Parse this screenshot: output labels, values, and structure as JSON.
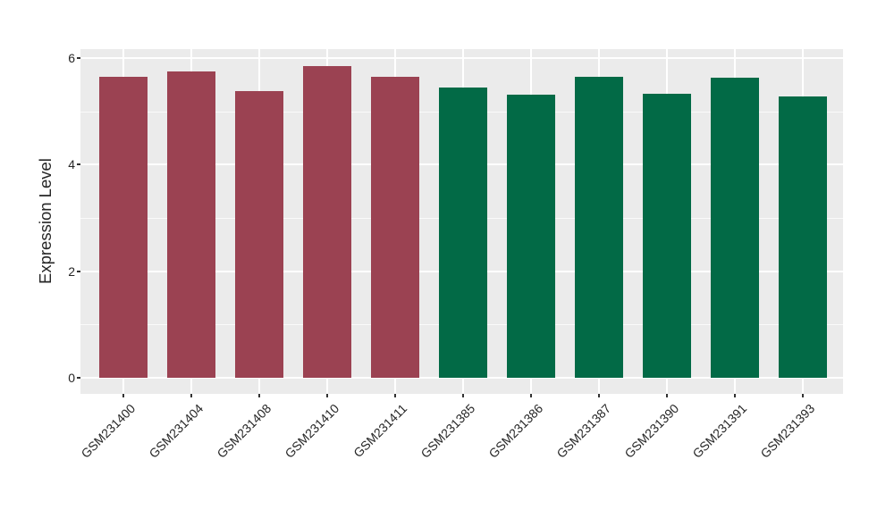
{
  "figure": {
    "background": "#FFFFFF"
  },
  "chart_data": {
    "type": "bar",
    "title": "",
    "xlabel": "",
    "ylabel": "Expression Level",
    "categories": [
      "GSM231400",
      "GSM231404",
      "GSM231408",
      "GSM231410",
      "GSM231411",
      "GSM231385",
      "GSM231386",
      "GSM231387",
      "GSM231390",
      "GSM231391",
      "GSM231393"
    ],
    "values": [
      5.65,
      5.75,
      5.38,
      5.85,
      5.65,
      5.45,
      5.31,
      5.65,
      5.33,
      5.63,
      5.27
    ],
    "groups": [
      "group1",
      "group1",
      "group1",
      "group1",
      "group1",
      "group2",
      "group2",
      "group2",
      "group2",
      "group2",
      "group2"
    ],
    "group_colors": {
      "group1": "#9B4252",
      "group2": "#026A46"
    },
    "ylim": [
      -0.3,
      6.17
    ],
    "yticks": [
      0,
      2,
      4,
      6
    ],
    "yticks_minor": [
      1,
      3,
      5
    ],
    "grid": true,
    "legend": "none",
    "panel_bg": "#EBEBEB",
    "grid_color": "#FFFFFF",
    "axis_text_color": "#262626",
    "tick_mark_color": "#333333"
  }
}
